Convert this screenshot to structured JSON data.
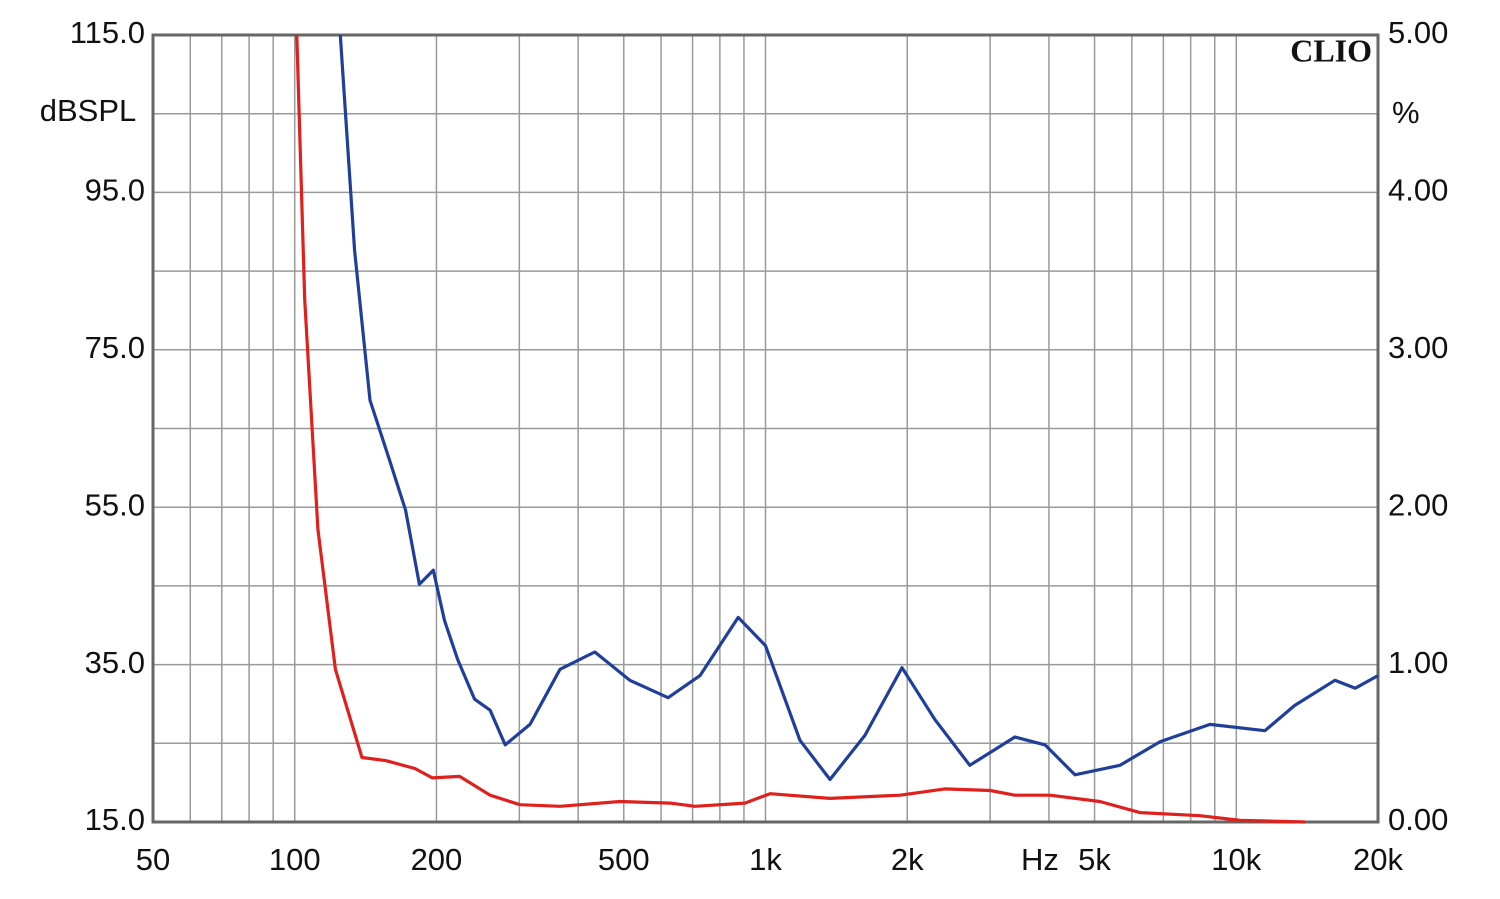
{
  "chart_data": {
    "type": "line",
    "xscale": "log",
    "xlim": [
      50,
      20000
    ],
    "xticks": [
      50,
      100,
      200,
      500,
      {
        "value": 1000,
        "label": "1k"
      },
      {
        "value": 2000,
        "label": "2k"
      },
      {
        "value": 5000,
        "label": "5k"
      },
      {
        "value": 10000,
        "label": "10k"
      },
      {
        "value": 20000,
        "label": "20k"
      }
    ],
    "xgrid": [
      50,
      60,
      70,
      80,
      90,
      100,
      200,
      300,
      400,
      500,
      600,
      700,
      800,
      900,
      1000,
      2000,
      3000,
      4000,
      5000,
      6000,
      7000,
      8000,
      9000,
      10000,
      20000
    ],
    "xlabel": "Hz",
    "ylim": [
      15,
      115
    ],
    "yticks": [
      {
        "value": 115,
        "label": "115.0"
      },
      {
        "value": 95,
        "label": "95.0"
      },
      {
        "value": 75,
        "label": "75.0"
      },
      {
        "value": 55,
        "label": "55.0"
      },
      {
        "value": 35,
        "label": "35.0"
      },
      {
        "value": 15,
        "label": "15.0"
      }
    ],
    "ygrid": [
      15,
      25,
      35,
      45,
      55,
      65,
      75,
      85,
      95,
      105,
      115
    ],
    "ylabel": "dBSPL",
    "y2lim": [
      0,
      5
    ],
    "y2ticks": [
      {
        "value": 5,
        "label": "5.00"
      },
      {
        "value": 4,
        "label": "4.00"
      },
      {
        "value": 3,
        "label": "3.00"
      },
      {
        "value": 2,
        "label": "2.00"
      },
      {
        "value": 1,
        "label": "1.00"
      },
      {
        "value": 0,
        "label": "0.00"
      }
    ],
    "y2label": "%",
    "watermark": "CLIO",
    "grid": true,
    "series": [
      {
        "color": "#1f3f9a",
        "axis": "y2",
        "x": [
          125,
          134,
          144.5,
          159,
          172,
          184,
          197,
          208,
          222,
          241,
          260,
          280,
          316,
          366,
          434,
          515,
          621,
          726,
          875,
          1000,
          1183,
          1371,
          1626,
          1950,
          2291,
          2716,
          3387,
          3925,
          4541,
          5662,
          6886,
          8790,
          11500,
          13300,
          16200,
          17900,
          20000
        ],
        "values": [
          5.0,
          3.63,
          2.68,
          2.3,
          1.98,
          1.51,
          1.6,
          1.28,
          1.03,
          0.78,
          0.71,
          0.49,
          0.62,
          0.97,
          1.08,
          0.9,
          0.79,
          0.93,
          1.3,
          1.12,
          0.52,
          0.27,
          0.55,
          0.98,
          0.65,
          0.36,
          0.54,
          0.49,
          0.3,
          0.36,
          0.51,
          0.62,
          0.58,
          0.74,
          0.9,
          0.85,
          0.93
        ]
      },
      {
        "color": "#e0201c",
        "axis": "y2",
        "x": [
          101,
          105,
          112,
          122,
          139,
          156,
          180,
          196,
          224,
          260,
          301,
          366,
          491,
          627,
          708,
          904,
          1023,
          1371,
          1932,
          2404,
          3000,
          3387,
          4020,
          5130,
          6240,
          8370,
          10200,
          14000
        ],
        "values": [
          5.0,
          3.32,
          1.86,
          0.97,
          0.41,
          0.39,
          0.34,
          0.28,
          0.29,
          0.17,
          0.11,
          0.1,
          0.13,
          0.12,
          0.1,
          0.12,
          0.18,
          0.15,
          0.17,
          0.21,
          0.2,
          0.17,
          0.17,
          0.13,
          0.06,
          0.04,
          0.01,
          0.0
        ]
      }
    ]
  }
}
